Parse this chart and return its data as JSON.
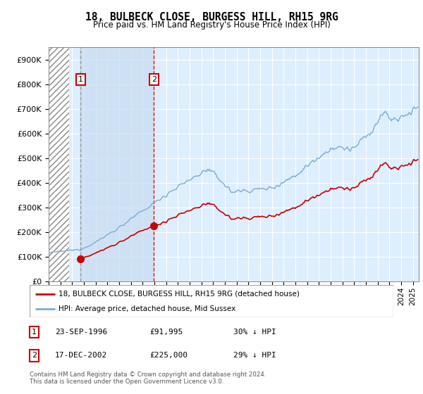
{
  "title": "18, BULBECK CLOSE, BURGESS HILL, RH15 9RG",
  "subtitle": "Price paid vs. HM Land Registry's House Price Index (HPI)",
  "sale1_label": "23-SEP-1996",
  "sale1_price": 91995,
  "sale1_hpi_pct": "30% ↓ HPI",
  "sale2_label": "17-DEC-2002",
  "sale2_price": 225000,
  "sale2_hpi_pct": "29% ↓ HPI",
  "legend_line1": "18, BULBECK CLOSE, BURGESS HILL, RH15 9RG (detached house)",
  "legend_line2": "HPI: Average price, detached house, Mid Sussex",
  "footer": "Contains HM Land Registry data © Crown copyright and database right 2024.\nThis data is licensed under the Open Government Licence v3.0.",
  "bg_color": "#ddeeff",
  "line_red": "#cc0000",
  "line_blue": "#7aadd4",
  "ylim": [
    0,
    950000
  ],
  "yticks": [
    0,
    100000,
    200000,
    300000,
    400000,
    500000,
    600000,
    700000,
    800000,
    900000
  ],
  "xlim_start": 1994.0,
  "xlim_end": 2025.5,
  "hatch_end": 1995.75
}
